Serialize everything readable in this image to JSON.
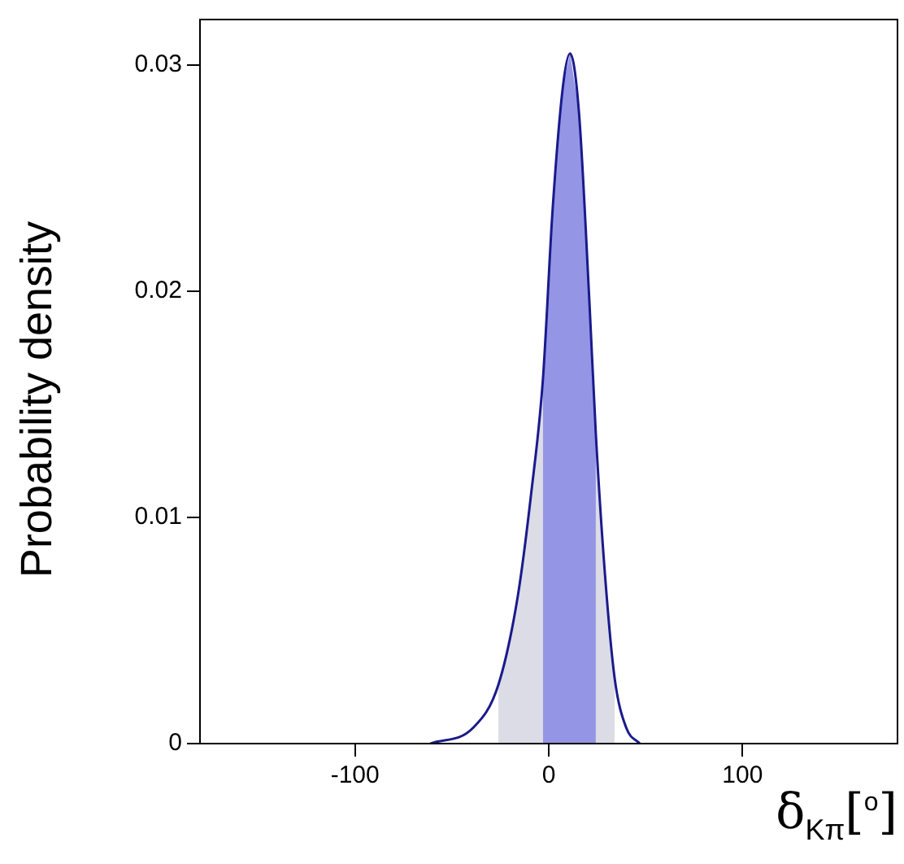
{
  "chart_data": {
    "type": "area",
    "xlabel": "δ$_{Kπ}$[$^{o}$]",
    "ylabel": "Probability density",
    "xlim": [
      -180,
      180
    ],
    "xticks": [
      -100,
      0,
      100
    ],
    "ylim": [
      0,
      0.032
    ],
    "yticks": [
      0,
      0.01,
      0.02,
      0.03
    ],
    "grid": false,
    "legend": false,
    "series": [
      {
        "type": "area",
        "color": "#dcdce6",
        "x": [
          -26,
          -16,
          -9,
          -3,
          2,
          7.4,
          11,
          15.6,
          21,
          24.3,
          29,
          34
        ],
        "values": [
          0.0026,
          0.0065,
          0.0111,
          0.0161,
          0.0236,
          0.0291,
          0.0305,
          0.0279,
          0.0195,
          0.0137,
          0.0075,
          0.0029
        ]
      },
      {
        "type": "area",
        "color": "#9595e6",
        "x": [
          -3,
          2,
          7.4,
          11,
          15.6,
          21,
          24.3
        ],
        "values": [
          0.0161,
          0.0236,
          0.0291,
          0.0305,
          0.0279,
          0.0195,
          0.0137
        ]
      },
      {
        "type": "line",
        "color": "#1a1a8c",
        "x": [
          -61,
          -39,
          -26,
          -16,
          -9,
          -3,
          2,
          7.4,
          11,
          15.6,
          21,
          24.3,
          29,
          34,
          40,
          47
        ],
        "values": [
          0,
          0.0007,
          0.0026,
          0.0065,
          0.0111,
          0.0161,
          0.0236,
          0.0291,
          0.0305,
          0.0279,
          0.0195,
          0.0137,
          0.0075,
          0.0029,
          0.0007,
          0
        ]
      }
    ]
  }
}
